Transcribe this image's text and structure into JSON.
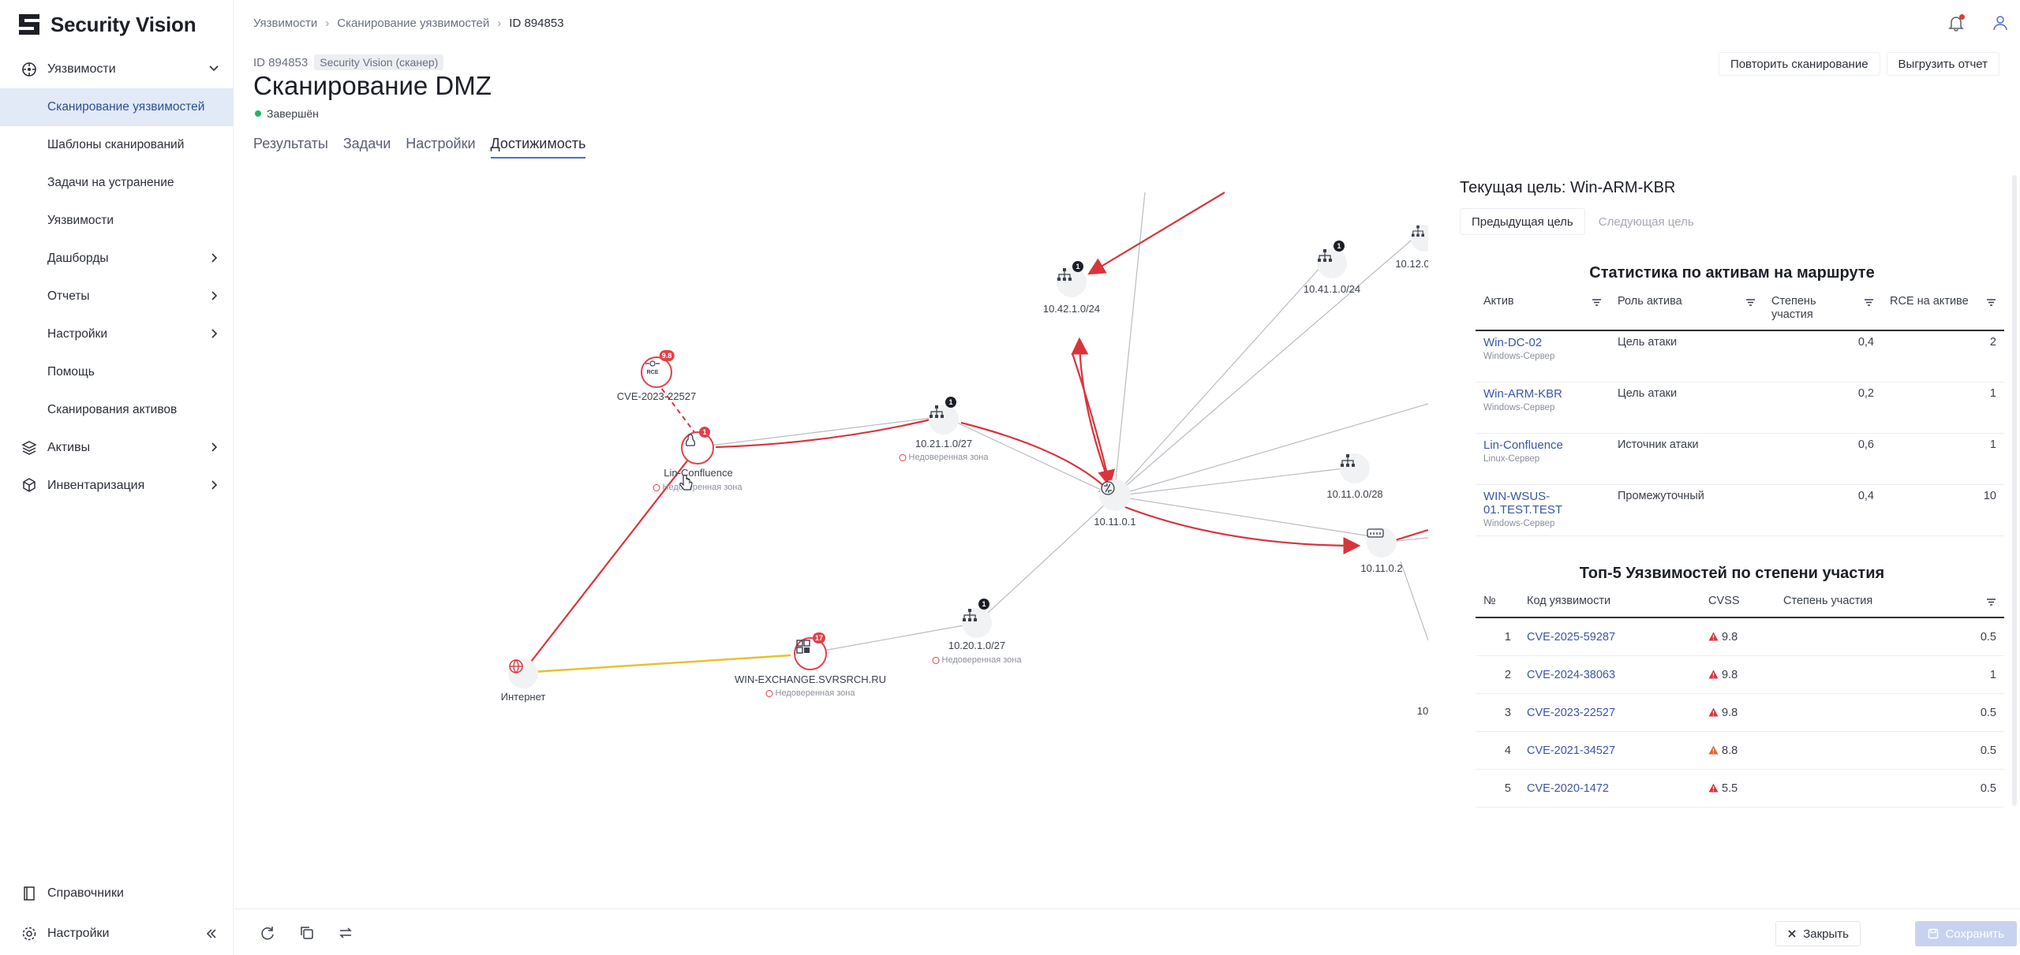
{
  "app": {
    "brand": "Security Vision"
  },
  "sidebar": {
    "items": [
      {
        "label": "Уязвимости",
        "level": "top",
        "expanded": true
      },
      {
        "label": "Сканирование уязвимостей",
        "level": "sub",
        "active": true
      },
      {
        "label": "Шаблоны сканирований",
        "level": "sub"
      },
      {
        "label": "Задачи на устранение",
        "level": "sub"
      },
      {
        "label": "Уязвимости",
        "level": "sub"
      },
      {
        "label": "Дашборды",
        "level": "sub",
        "has_children": true
      },
      {
        "label": "Отчеты",
        "level": "sub",
        "has_children": true
      },
      {
        "label": "Настройки",
        "level": "sub",
        "has_children": true
      },
      {
        "label": "Помощь",
        "level": "sub"
      },
      {
        "label": "Сканирования активов",
        "level": "sub"
      },
      {
        "label": "Активы",
        "level": "top",
        "has_children": true
      },
      {
        "label": "Инвентаризация",
        "level": "top",
        "has_children": true
      }
    ],
    "bottom": [
      {
        "label": "Справочники"
      },
      {
        "label": "Настройки"
      }
    ]
  },
  "breadcrumb": [
    "Уязвимости",
    "Сканирование уязвимостей",
    "ID 894853"
  ],
  "header": {
    "id_text": "ID 894853",
    "scanner_badge": "Security Vision (сканер)",
    "title": "Сканирование DMZ",
    "status": "Завершён",
    "status_color": "#1fb66a",
    "rescan_label": "Повторить сканирование",
    "export_label": "Выгрузить отчет"
  },
  "tabs": [
    {
      "label": "Результаты"
    },
    {
      "label": "Задачи"
    },
    {
      "label": "Настройки"
    },
    {
      "label": "Достижимость",
      "active": true
    }
  ],
  "graph": {
    "zone_label": "Недоверенная зона",
    "nodes": {
      "cve": {
        "label": "CVE-2023-22527",
        "badge": "9.8",
        "icon": "rce-icon"
      },
      "lin": {
        "label": "Lin-Confluence",
        "badge": "1"
      },
      "net21": {
        "label": "10.21.1.0/27",
        "badge": "1"
      },
      "net42": {
        "label": "10.42.1.0/24",
        "badge": "1"
      },
      "net41": {
        "label": "10.41.1.0/24",
        "badge": "1"
      },
      "net12": {
        "label": "10.12.0"
      },
      "router": {
        "label": "10.11.0.1"
      },
      "net11": {
        "label": "10.11.0.0/28"
      },
      "sw": {
        "label": "10.11.0.2"
      },
      "net20": {
        "label": "10.20.1.0/27",
        "badge": "1"
      },
      "exch": {
        "label": "WIN-EXCHANGE.SVRSRCH.RU",
        "badge": "17"
      },
      "internet": {
        "label": "Интернет"
      },
      "edge": {
        "label": "10"
      }
    }
  },
  "panel": {
    "current_target_label": "Текущая цель: Win-ARM-KBR",
    "prev_label": "Предыдущая цель",
    "next_label": "Следующая цель",
    "assets_title": "Статистика по активам на маршруте",
    "assets_columns": [
      "Актив",
      "Роль актива",
      "Степень участия",
      "RCE на активе"
    ],
    "assets": [
      {
        "name": "Win-DC-02",
        "type": "Windows-Сервер",
        "role": "Цель атаки",
        "share": "0,4",
        "rce": "2"
      },
      {
        "name": "Win-ARM-KBR",
        "type": "Windows-Сервер",
        "role": "Цель атаки",
        "share": "0,2",
        "rce": "1"
      },
      {
        "name": "Lin-Confluence",
        "type": "Linux-Сервер",
        "role": "Источник атаки",
        "share": "0,6",
        "rce": "1"
      },
      {
        "name": "WIN-WSUS-01.TEST.TEST",
        "type": "Windows-Сервер",
        "role": "Промежуточный",
        "share": "0,4",
        "rce": "10"
      }
    ],
    "vulns_title": "Топ-5 Уязвимостей по степени участия",
    "vulns_columns": [
      "№",
      "Код уязвимости",
      "CVSS",
      "Степень участия"
    ],
    "vulns": [
      {
        "n": "1",
        "code": "CVE-2025-59287",
        "cvss": "9.8",
        "share": "0.5",
        "color": "#d9343c"
      },
      {
        "n": "2",
        "code": "CVE-2024-38063",
        "cvss": "9.8",
        "share": "1",
        "color": "#d9343c"
      },
      {
        "n": "3",
        "code": "CVE-2023-22527",
        "cvss": "9.8",
        "share": "0.5",
        "color": "#d9343c"
      },
      {
        "n": "4",
        "code": "CVE-2021-34527",
        "cvss": "8.8",
        "share": "0.5",
        "color": "#e0642c"
      },
      {
        "n": "5",
        "code": "CVE-2020-1472",
        "cvss": "5.5",
        "share": "0.5",
        "color": "#d9343c"
      }
    ]
  },
  "footer": {
    "close_label": "Закрыть",
    "save_label": "Сохранить"
  }
}
